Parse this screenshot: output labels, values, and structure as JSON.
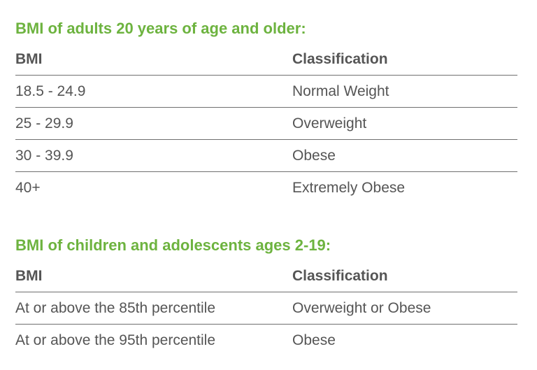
{
  "adults": {
    "title": "BMI of adults 20 years of age and older:",
    "headers": {
      "bmi": "BMI",
      "classification": "Classification"
    },
    "rows": [
      {
        "bmi": "18.5 - 24.9",
        "classification": "Normal Weight"
      },
      {
        "bmi": "25 - 29.9",
        "classification": "Overweight"
      },
      {
        "bmi": "30 - 39.9",
        "classification": "Obese"
      },
      {
        "bmi": "40+",
        "classification": "Extremely Obese"
      }
    ]
  },
  "children": {
    "title": "BMI of children and adolescents ages 2-19:",
    "headers": {
      "bmi": "BMI",
      "classification": "Classification"
    },
    "rows": [
      {
        "bmi": "At or above the 85th percentile",
        "classification": "Overweight or Obese"
      },
      {
        "bmi": "At or above the 95th percentile",
        "classification": "Obese"
      }
    ]
  },
  "colors": {
    "title": "#6db33f",
    "text": "#555555",
    "rule": "#6f6f6f"
  }
}
